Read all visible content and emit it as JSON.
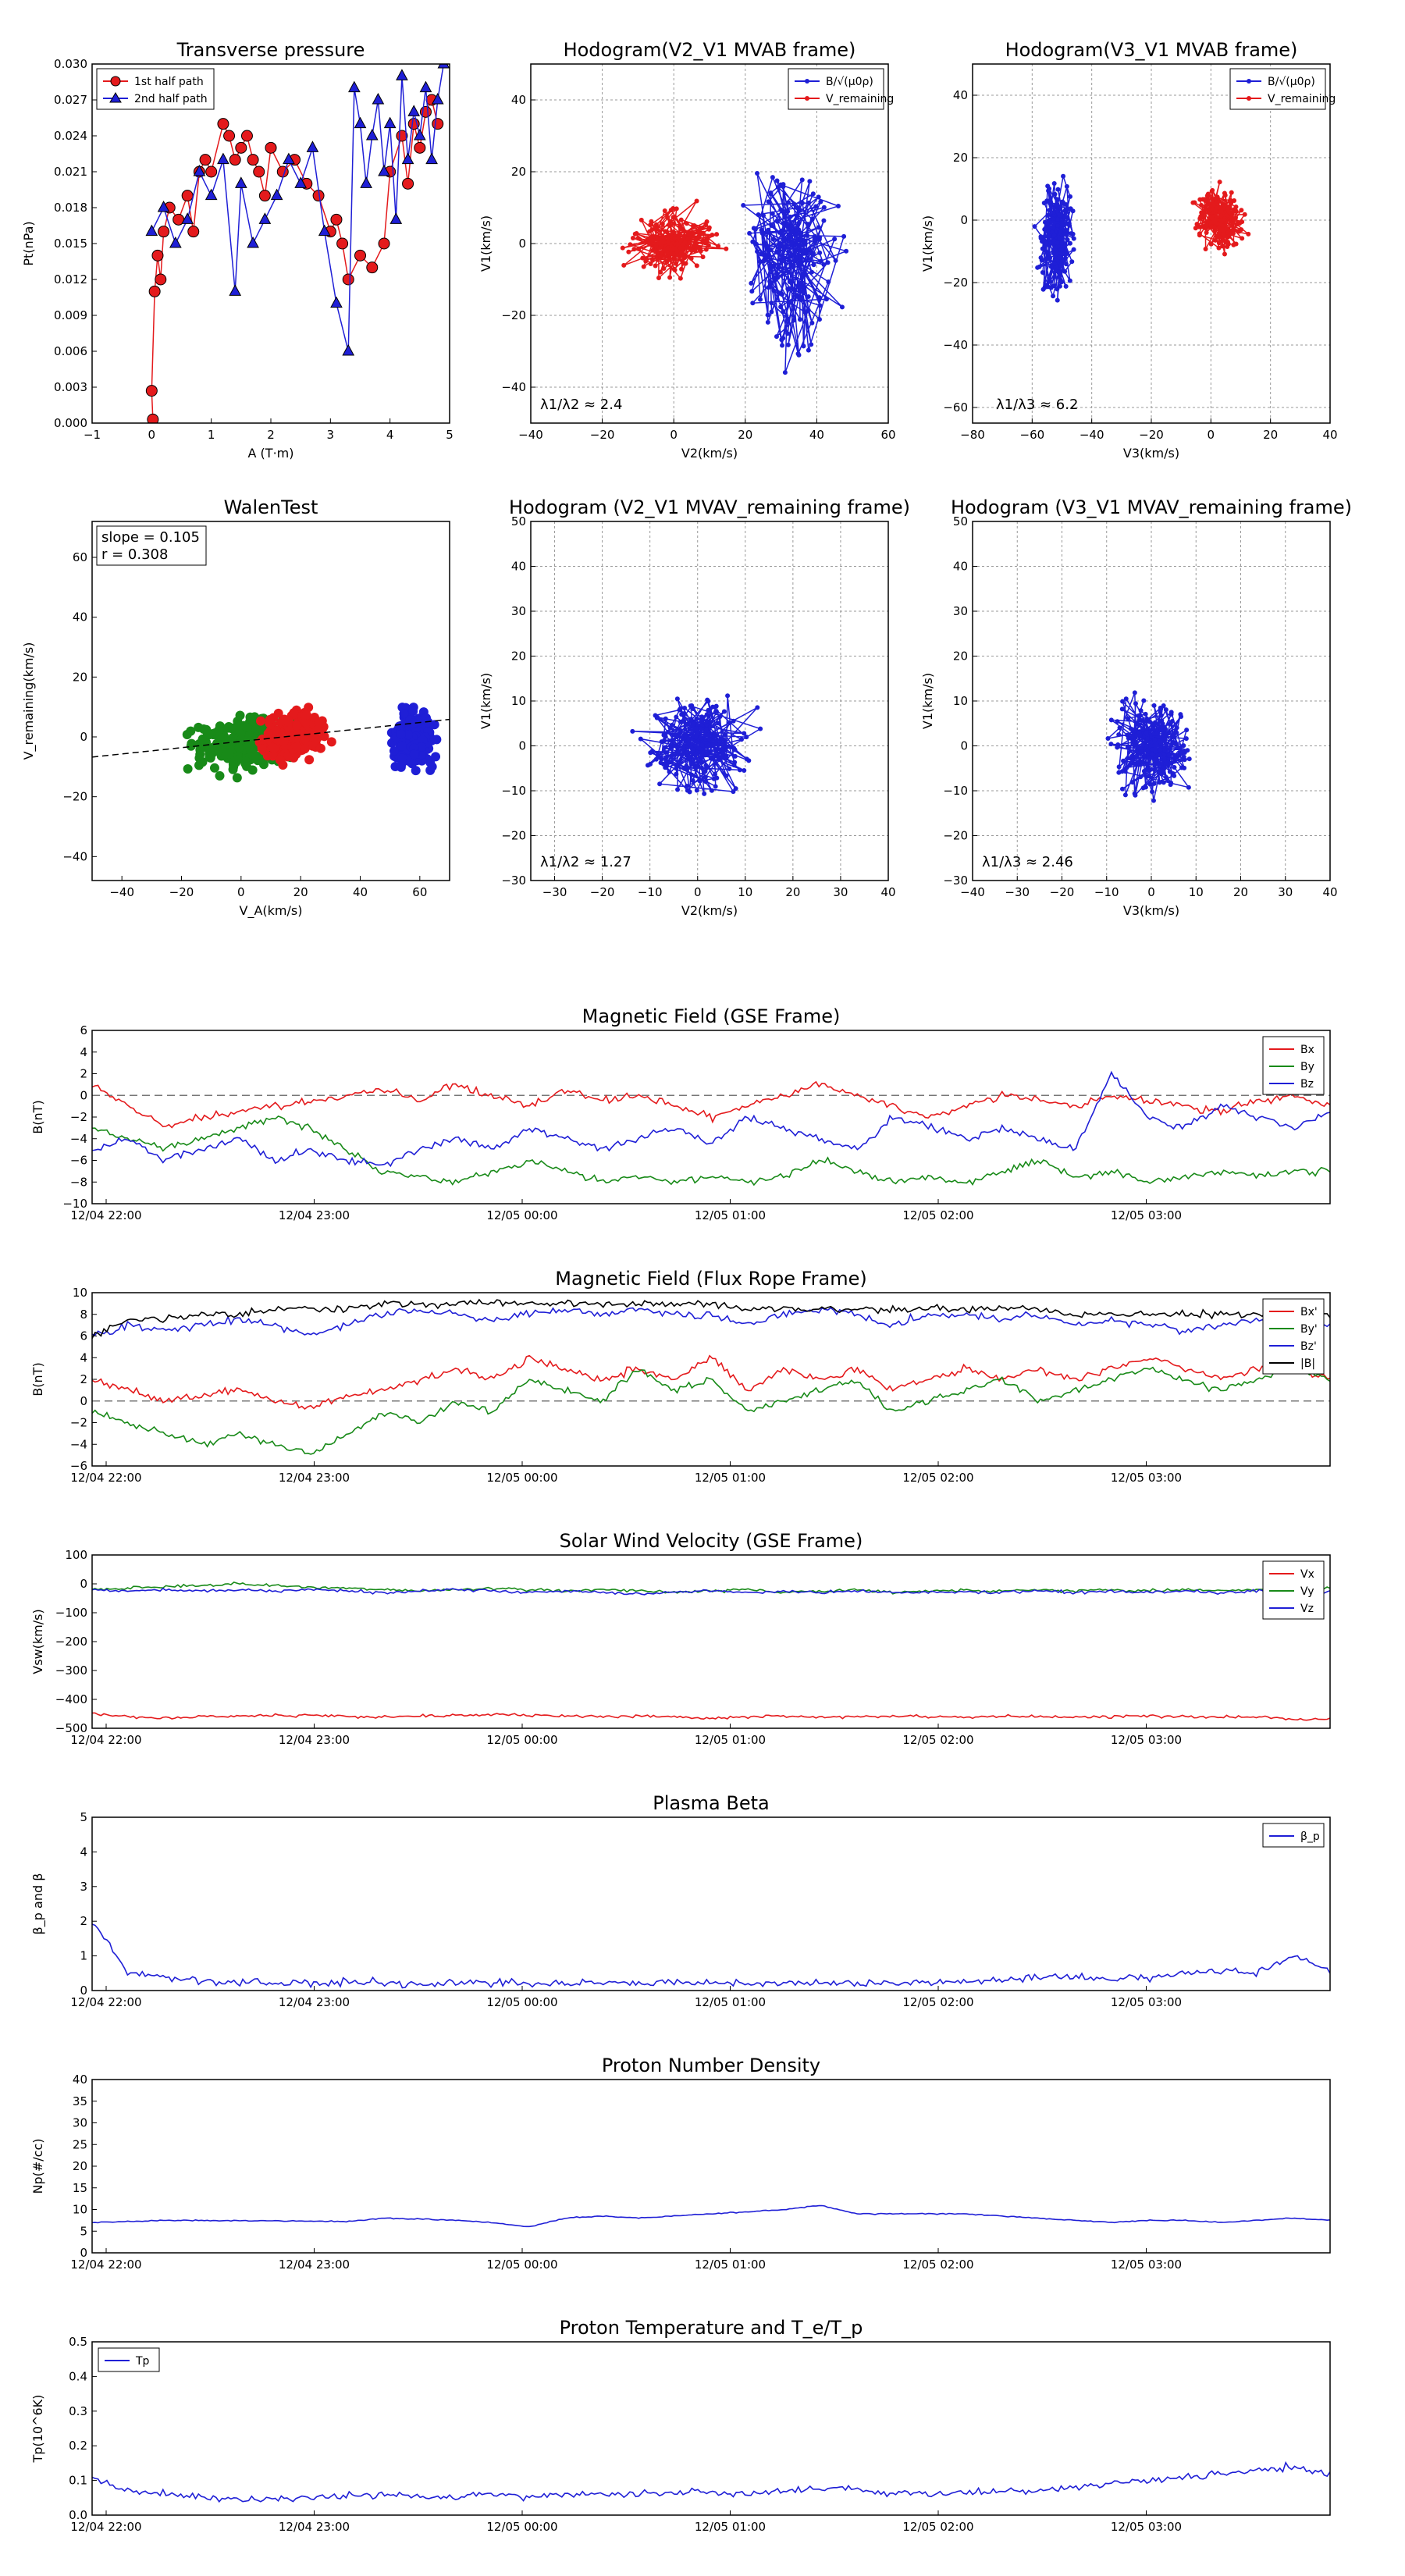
{
  "colors": {
    "red": "#e41a1c",
    "blue": "#1f1fd6",
    "green": "#188a18",
    "black": "#000000",
    "grid": "#999999",
    "dash": "#777777"
  },
  "time_ticks": [
    "12/04 22:00",
    "12/04 23:00",
    "12/05 00:00",
    "12/05 01:00",
    "12/05 02:00",
    "12/05 03:00"
  ],
  "chart_data": [
    {
      "id": "tp",
      "type": "scatter",
      "title": "Transverse pressure",
      "xlabel": "A (T·m)",
      "ylabel": "Pt(nPa)",
      "xlim": [
        -1,
        5
      ],
      "ylim": [
        0,
        0.03
      ],
      "grid": false,
      "legend": "top-left",
      "xticks": [
        "−1",
        "0",
        "1",
        "2",
        "3",
        "4",
        "5"
      ],
      "yticks": [
        "0.000",
        "0.003",
        "0.006",
        "0.009",
        "0.012",
        "0.015",
        "0.018",
        "0.021",
        "0.024",
        "0.027",
        "0.030"
      ],
      "series": [
        {
          "name": "1st half path",
          "marker": "circle",
          "color": "red",
          "x": [
            0.02,
            0.0,
            0.05,
            0.1,
            0.15,
            0.2,
            0.3,
            0.45,
            0.6,
            0.7,
            0.8,
            0.9,
            1.0,
            1.2,
            1.3,
            1.4,
            1.5,
            1.6,
            1.7,
            1.8,
            1.9,
            2.0,
            2.2,
            2.4,
            2.6,
            2.8,
            3.0,
            3.1,
            3.2,
            3.3,
            3.5,
            3.7,
            3.9,
            4.0,
            4.2,
            4.3,
            4.4,
            4.5,
            4.6,
            4.7,
            4.8
          ],
          "y": [
            0.0003,
            0.0027,
            0.011,
            0.014,
            0.012,
            0.016,
            0.018,
            0.017,
            0.019,
            0.016,
            0.021,
            0.022,
            0.021,
            0.025,
            0.024,
            0.022,
            0.023,
            0.024,
            0.022,
            0.021,
            0.019,
            0.023,
            0.021,
            0.022,
            0.02,
            0.019,
            0.016,
            0.017,
            0.015,
            0.012,
            0.014,
            0.013,
            0.015,
            0.021,
            0.024,
            0.02,
            0.025,
            0.023,
            0.026,
            0.027,
            0.025
          ]
        },
        {
          "name": "2nd half path",
          "marker": "triangle",
          "color": "blue",
          "x": [
            0.0,
            0.2,
            0.4,
            0.6,
            0.8,
            1.0,
            1.2,
            1.4,
            1.5,
            1.7,
            1.9,
            2.1,
            2.3,
            2.5,
            2.7,
            2.9,
            3.1,
            3.3,
            3.4,
            3.5,
            3.6,
            3.7,
            3.8,
            3.9,
            4.0,
            4.1,
            4.2,
            4.3,
            4.4,
            4.5,
            4.6,
            4.7,
            4.8,
            4.9
          ],
          "y": [
            0.016,
            0.018,
            0.015,
            0.017,
            0.021,
            0.019,
            0.022,
            0.011,
            0.02,
            0.015,
            0.017,
            0.019,
            0.022,
            0.02,
            0.023,
            0.016,
            0.01,
            0.006,
            0.028,
            0.025,
            0.02,
            0.024,
            0.027,
            0.021,
            0.025,
            0.017,
            0.029,
            0.022,
            0.026,
            0.024,
            0.028,
            0.022,
            0.027,
            0.03
          ]
        }
      ]
    },
    {
      "id": "h1",
      "type": "line",
      "title": "Hodogram(V2_V1 MVAB frame)",
      "xlabel": "V2(km/s)",
      "ylabel": "V1(km/s)",
      "xlim": [
        -40,
        60
      ],
      "ylim": [
        -50,
        50
      ],
      "grid": true,
      "legend": "top-right",
      "xticks": [
        "−40",
        "−20",
        "0",
        "20",
        "40",
        "60"
      ],
      "yticks": [
        "−40",
        "−20",
        "0",
        "20",
        "40"
      ],
      "annotation": "λ1/λ2 ≈ 2.4",
      "series": [
        {
          "name": "B/√(μ0ρ)",
          "color": "blue"
        },
        {
          "name": "V_remaining",
          "color": "red"
        }
      ]
    },
    {
      "id": "h2",
      "type": "line",
      "title": "Hodogram(V3_V1 MVAB frame)",
      "xlabel": "V3(km/s)",
      "ylabel": "V1(km/s)",
      "xlim": [
        -80,
        40
      ],
      "ylim": [
        -65,
        50
      ],
      "grid": true,
      "legend": "top-right",
      "xticks": [
        "−80",
        "−60",
        "−40",
        "−20",
        "0",
        "20",
        "40"
      ],
      "yticks": [
        "−60",
        "−40",
        "−20",
        "0",
        "20",
        "40"
      ],
      "annotation": "λ1/λ3 ≈ 6.2",
      "series": [
        {
          "name": "B/√(μ0ρ)",
          "color": "blue"
        },
        {
          "name": "V_remaining",
          "color": "red"
        }
      ]
    },
    {
      "id": "walen",
      "type": "scatter",
      "title": "WalenTest",
      "xlabel": "V_A(km/s)",
      "ylabel": "V_remaining(km/s)",
      "xlim": [
        -50,
        70
      ],
      "ylim": [
        -48,
        72
      ],
      "grid": false,
      "xticks": [
        "−40",
        "−20",
        "0",
        "20",
        "40",
        "60"
      ],
      "yticks": [
        "−40",
        "−20",
        "0",
        "20",
        "40",
        "60"
      ],
      "annotation": [
        "slope = 0.105",
        "r = 0.308"
      ],
      "fit": {
        "slope": 0.105,
        "intercept": -1.5
      }
    },
    {
      "id": "h3",
      "type": "line",
      "title": "Hodogram (V2_V1 MVAV_remaining frame)",
      "xlabel": "V2(km/s)",
      "ylabel": "V1(km/s)",
      "xlim": [
        -35,
        40
      ],
      "ylim": [
        -30,
        50
      ],
      "grid": true,
      "xticks": [
        "−30",
        "−20",
        "−10",
        "0",
        "10",
        "20",
        "30",
        "40"
      ],
      "yticks": [
        "−30",
        "−20",
        "−10",
        "0",
        "10",
        "20",
        "30",
        "40",
        "50"
      ],
      "annotation": "λ1/λ2 ≈ 1.27"
    },
    {
      "id": "h4",
      "type": "line",
      "title": "Hodogram (V3_V1 MVAV_remaining frame)",
      "xlabel": "V3(km/s)",
      "ylabel": "V1(km/s)",
      "xlim": [
        -40,
        40
      ],
      "ylim": [
        -30,
        50
      ],
      "grid": true,
      "xticks": [
        "−40",
        "−30",
        "−20",
        "−10",
        "0",
        "10",
        "20",
        "30",
        "40"
      ],
      "yticks": [
        "−30",
        "−20",
        "−10",
        "0",
        "10",
        "20",
        "30",
        "40",
        "50"
      ],
      "annotation": "λ1/λ3 ≈ 2.46"
    },
    {
      "id": "bgse",
      "type": "line",
      "title": "Magnetic Field (GSE Frame)",
      "ylabel": "B(nT)",
      "ylim": [
        -10,
        6
      ],
      "yticks": [
        "−10",
        "−8",
        "−6",
        "−4",
        "−2",
        "0",
        "2",
        "4",
        "6"
      ],
      "zero_line": true,
      "legend": "top-right",
      "series": [
        {
          "name": "Bx",
          "color": "red",
          "values": [
            1,
            -1,
            -3,
            -2,
            -1.5,
            -1,
            -0.5,
            0,
            0.5,
            -0.5,
            1,
            0,
            -1,
            0.5,
            -0.5,
            0,
            -1,
            -2,
            -1,
            0,
            1,
            0,
            -1,
            -2,
            -1,
            0,
            -0.5,
            -1,
            0,
            -0.5,
            -1,
            -1.5,
            -0.5,
            0,
            -1
          ]
        },
        {
          "name": "By",
          "color": "green",
          "values": [
            -3,
            -4,
            -5,
            -4,
            -3,
            -2,
            -3,
            -5,
            -7,
            -7.5,
            -8,
            -7,
            -6,
            -7,
            -8,
            -7.5,
            -8,
            -7.5,
            -8,
            -7.5,
            -6,
            -7,
            -8,
            -7.5,
            -8,
            -7,
            -6,
            -7.5,
            -7,
            -8,
            -7.5,
            -7,
            -7.5,
            -7,
            -7
          ]
        },
        {
          "name": "Bz",
          "color": "blue",
          "values": [
            -5,
            -4,
            -6,
            -5,
            -4,
            -6,
            -5,
            -6,
            -6.5,
            -5,
            -4,
            -5,
            -3,
            -4,
            -5,
            -4,
            -3,
            -4.5,
            -2,
            -3,
            -4,
            -5,
            -2,
            -3,
            -4,
            -3,
            -4,
            -5,
            2,
            -2,
            -3,
            -1,
            -2,
            -3,
            -1.5
          ]
        }
      ]
    },
    {
      "id": "bfr",
      "type": "line",
      "title": "Magnetic Field (Flux Rope Frame)",
      "ylabel": "B(nT)",
      "ylim": [
        -6,
        10
      ],
      "yticks": [
        "−6",
        "−4",
        "−2",
        "0",
        "2",
        "4",
        "6",
        "8",
        "10"
      ],
      "zero_line": true,
      "legend": "top-right",
      "series": [
        {
          "name": "Bx'",
          "color": "red",
          "values": [
            2,
            1,
            0,
            0.5,
            1,
            0,
            -0.5,
            0.5,
            1,
            2,
            3,
            2,
            4,
            3,
            2,
            3,
            2,
            4,
            1,
            3,
            2,
            3,
            1,
            2,
            3,
            2,
            3,
            2,
            3,
            4,
            3,
            2,
            3,
            3,
            2
          ]
        },
        {
          "name": "By'",
          "color": "green",
          "values": [
            -1,
            -2,
            -3,
            -4,
            -3,
            -4,
            -5,
            -3,
            -1,
            -2,
            0,
            -1,
            2,
            1,
            0,
            3,
            1,
            2,
            -1,
            0,
            1,
            2,
            -1,
            0,
            1,
            2,
            0,
            1,
            2,
            3,
            2,
            1,
            2,
            3,
            2
          ]
        },
        {
          "name": "Bz'",
          "color": "blue",
          "values": [
            6,
            7,
            6.5,
            7,
            7.5,
            7,
            6,
            7,
            8,
            8.5,
            8,
            7.5,
            8,
            8.5,
            8,
            8.5,
            8,
            8,
            7,
            8,
            8.5,
            8,
            7,
            8,
            8,
            7.5,
            8,
            7,
            7.5,
            7,
            6.5,
            7,
            7.5,
            6,
            7
          ]
        },
        {
          "name": "|B|",
          "color": "black",
          "values": [
            6,
            7.5,
            7.5,
            8,
            8,
            8.5,
            8.5,
            8.5,
            9,
            9,
            9,
            9,
            9,
            9,
            9,
            9,
            9,
            9,
            8.5,
            8.5,
            8.5,
            8.5,
            8.5,
            8.5,
            8.5,
            8.5,
            8.5,
            8,
            8,
            8,
            8,
            8,
            8,
            8,
            8
          ]
        }
      ]
    },
    {
      "id": "vsw",
      "type": "line",
      "title": "Solar Wind Velocity (GSE Frame)",
      "ylabel": "Vsw(km/s)",
      "ylim": [
        -500,
        100
      ],
      "yticks": [
        "−500",
        "−400",
        "−300",
        "−200",
        "−100",
        "0",
        "100"
      ],
      "legend": "top-right",
      "series": [
        {
          "name": "Vx",
          "color": "red",
          "values": [
            -450,
            -460,
            -465,
            -460,
            -458,
            -455,
            -455,
            -458,
            -460,
            -458,
            -455,
            -452,
            -455,
            -458,
            -460,
            -458,
            -462,
            -465,
            -460,
            -458,
            -462,
            -460,
            -458,
            -460,
            -462,
            -458,
            -460,
            -462,
            -460,
            -458,
            -460,
            -462,
            -460,
            -470,
            -465
          ]
        },
        {
          "name": "Vy",
          "color": "green",
          "values": [
            -20,
            -15,
            -10,
            -5,
            0,
            -5,
            -10,
            -15,
            -20,
            -25,
            -20,
            -15,
            -20,
            -25,
            -20,
            -25,
            -30,
            -25,
            -20,
            -30,
            -25,
            -20,
            -30,
            -25,
            -20,
            -25,
            -20,
            -25,
            -20,
            -25,
            -20,
            -25,
            -20,
            -25,
            -15
          ]
        },
        {
          "name": "Vz",
          "color": "blue",
          "values": [
            -20,
            -25,
            -20,
            -25,
            -20,
            -25,
            -20,
            -25,
            -30,
            -25,
            -20,
            -25,
            -30,
            -25,
            -30,
            -35,
            -30,
            -25,
            -30,
            -25,
            -30,
            -25,
            -30,
            -30,
            -25,
            -30,
            -25,
            -30,
            -25,
            -30,
            -25,
            -30,
            -25,
            -30,
            -25
          ]
        }
      ]
    },
    {
      "id": "beta",
      "type": "line",
      "title": "Plasma Beta",
      "ylabel": "β_p and β",
      "ylim": [
        0,
        5
      ],
      "yticks": [
        "0",
        "1",
        "2",
        "3",
        "4",
        "5"
      ],
      "legend": "top-right",
      "series": [
        {
          "name": "β_p",
          "color": "blue",
          "values": [
            2.0,
            0.5,
            0.4,
            0.3,
            0.25,
            0.2,
            0.2,
            0.22,
            0.25,
            0.2,
            0.22,
            0.25,
            0.2,
            0.22,
            0.25,
            0.22,
            0.2,
            0.25,
            0.22,
            0.2,
            0.25,
            0.22,
            0.2,
            0.22,
            0.25,
            0.3,
            0.35,
            0.4,
            0.35,
            0.4,
            0.5,
            0.6,
            0.5,
            1.0,
            0.6
          ]
        }
      ]
    },
    {
      "id": "np",
      "type": "line",
      "title": "Proton Number Density",
      "ylabel": "Np(#/cc)",
      "ylim": [
        0,
        40
      ],
      "yticks": [
        "0",
        "5",
        "10",
        "15",
        "20",
        "25",
        "30",
        "35",
        "40"
      ],
      "series": [
        {
          "name": "Np",
          "color": "blue",
          "values": [
            7,
            7.2,
            7.5,
            7.5,
            7.4,
            7.4,
            7.3,
            7.2,
            8,
            7.8,
            7.5,
            7,
            6,
            8,
            8.5,
            8,
            8.5,
            9,
            9.5,
            10,
            11,
            9,
            9,
            9,
            9,
            8.5,
            8,
            7.5,
            7,
            7.5,
            7.5,
            7,
            7.5,
            8,
            7.5
          ]
        }
      ]
    },
    {
      "id": "tp2",
      "type": "line",
      "title": "Proton Temperature and T_e/T_p",
      "ylabel": "Tp(10^6K)",
      "ylim": [
        0,
        0.5
      ],
      "yticks": [
        "0.0",
        "0.1",
        "0.2",
        "0.3",
        "0.4",
        "0.5"
      ],
      "legend": "top-left",
      "series": [
        {
          "name": "Tp",
          "color": "blue",
          "values": [
            0.11,
            0.07,
            0.06,
            0.05,
            0.045,
            0.05,
            0.05,
            0.055,
            0.06,
            0.055,
            0.05,
            0.06,
            0.055,
            0.06,
            0.065,
            0.06,
            0.07,
            0.065,
            0.06,
            0.07,
            0.075,
            0.07,
            0.065,
            0.06,
            0.065,
            0.07,
            0.07,
            0.08,
            0.09,
            0.1,
            0.11,
            0.12,
            0.13,
            0.14,
            0.12
          ]
        }
      ]
    }
  ]
}
